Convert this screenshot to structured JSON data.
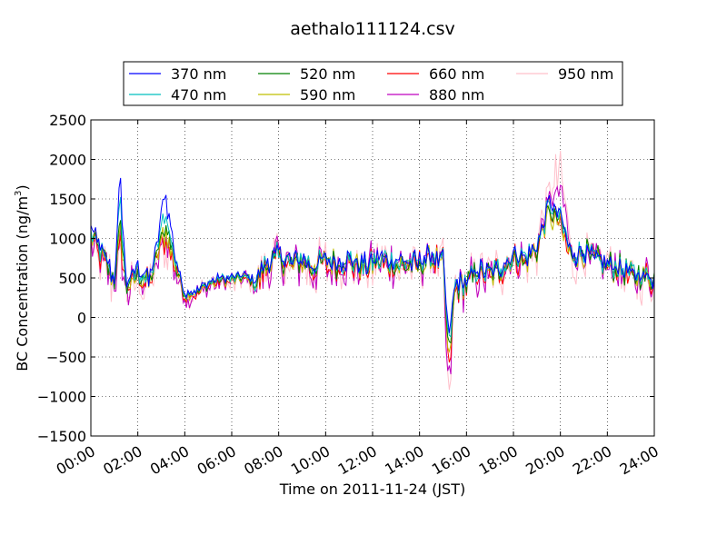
{
  "chart_data": {
    "type": "line",
    "title": "aethalo111124.csv",
    "xlabel": "Time on 2011-11-24 (JST)",
    "ylabel_main": "BC Concentration (ng/m",
    "ylabel_sup": "3",
    "ylabel_end": ")",
    "xlim": [
      "00:00",
      "24:00"
    ],
    "ylim": [
      -1500,
      2500
    ],
    "x_ticks": [
      "00:00",
      "02:00",
      "04:00",
      "06:00",
      "08:00",
      "10:00",
      "12:00",
      "14:00",
      "16:00",
      "18:00",
      "20:00",
      "22:00",
      "24:00"
    ],
    "y_ticks": [
      "−1500",
      "−1000",
      "−500",
      "0",
      "500",
      "1000",
      "1500",
      "2000",
      "2500"
    ],
    "grid": true,
    "legend_position": "top-center",
    "base_times": [
      "00:00",
      "00:30",
      "01:00",
      "01:15",
      "01:30",
      "02:00",
      "02:30",
      "03:00",
      "03:10",
      "03:30",
      "04:00",
      "04:30",
      "05:00",
      "05:30",
      "06:00",
      "06:30",
      "07:00",
      "07:30",
      "08:00",
      "08:30",
      "09:00",
      "09:30",
      "10:00",
      "10:30",
      "11:00",
      "11:30",
      "12:00",
      "12:30",
      "13:00",
      "13:30",
      "14:00",
      "14:30",
      "15:00",
      "15:15",
      "15:30",
      "16:00",
      "16:30",
      "17:00",
      "17:30",
      "18:00",
      "18:30",
      "19:00",
      "19:30",
      "20:00",
      "20:30",
      "21:00",
      "21:30",
      "22:00",
      "22:30",
      "23:00",
      "23:30",
      "24:00"
    ],
    "series": [
      {
        "name": "370 nm",
        "color": "#0000ff",
        "values": [
          1150,
          800,
          500,
          1800,
          400,
          650,
          450,
          1250,
          1600,
          900,
          300,
          350,
          450,
          500,
          500,
          550,
          450,
          700,
          800,
          700,
          750,
          650,
          750,
          700,
          750,
          650,
          700,
          750,
          700,
          700,
          700,
          800,
          700,
          -300,
          400,
          450,
          600,
          550,
          650,
          800,
          750,
          900,
          1450,
          1300,
          800,
          850,
          750,
          700,
          650,
          550,
          550,
          500
        ]
      },
      {
        "name": "470 nm",
        "color": "#00bfbf",
        "values": [
          1100,
          780,
          480,
          1500,
          390,
          600,
          440,
          1100,
          1350,
          850,
          290,
          340,
          440,
          490,
          490,
          540,
          440,
          690,
          790,
          690,
          740,
          640,
          740,
          690,
          740,
          640,
          690,
          740,
          690,
          690,
          690,
          790,
          690,
          -400,
          390,
          440,
          590,
          540,
          640,
          790,
          740,
          890,
          1400,
          1250,
          790,
          840,
          740,
          690,
          640,
          540,
          540,
          490
        ]
      },
      {
        "name": "520 nm",
        "color": "#008000",
        "values": [
          1050,
          760,
          460,
          1200,
          380,
          580,
          430,
          1000,
          1200,
          800,
          280,
          330,
          430,
          480,
          480,
          530,
          430,
          680,
          780,
          680,
          730,
          630,
          730,
          680,
          730,
          630,
          680,
          730,
          680,
          680,
          680,
          780,
          680,
          -500,
          380,
          430,
          580,
          530,
          630,
          780,
          730,
          880,
          1350,
          1200,
          780,
          830,
          730,
          680,
          630,
          530,
          530,
          480
        ]
      },
      {
        "name": "590 nm",
        "color": "#bfbf00",
        "values": [
          1020,
          740,
          450,
          1100,
          370,
          560,
          420,
          950,
          1100,
          780,
          270,
          320,
          420,
          470,
          470,
          520,
          420,
          670,
          770,
          670,
          720,
          620,
          720,
          670,
          720,
          620,
          670,
          720,
          670,
          670,
          670,
          770,
          670,
          -600,
          370,
          420,
          570,
          520,
          620,
          770,
          720,
          870,
          1300,
          1150,
          770,
          820,
          720,
          670,
          620,
          520,
          520,
          470
        ]
      },
      {
        "name": "660 nm",
        "color": "#ff0000",
        "values": [
          1000,
          720,
          440,
          1000,
          360,
          540,
          410,
          900,
          1000,
          760,
          260,
          310,
          410,
          460,
          460,
          510,
          400,
          660,
          760,
          660,
          710,
          610,
          710,
          660,
          710,
          610,
          660,
          710,
          660,
          660,
          660,
          760,
          660,
          -800,
          360,
          410,
          560,
          510,
          610,
          760,
          710,
          860,
          1400,
          1100,
          760,
          810,
          710,
          660,
          610,
          510,
          510,
          460
        ]
      },
      {
        "name": "880 nm",
        "color": "#bf00bf",
        "values": [
          980,
          700,
          430,
          950,
          350,
          520,
          400,
          860,
          950,
          740,
          250,
          300,
          400,
          450,
          450,
          500,
          390,
          650,
          750,
          650,
          700,
          600,
          700,
          650,
          700,
          600,
          650,
          700,
          650,
          650,
          650,
          750,
          650,
          -1000,
          350,
          400,
          550,
          500,
          600,
          750,
          700,
          850,
          1500,
          1600,
          750,
          800,
          700,
          650,
          600,
          500,
          500,
          450
        ]
      },
      {
        "name": "950 nm",
        "color": "#ffc0cb",
        "values": [
          960,
          680,
          420,
          900,
          340,
          500,
          390,
          820,
          900,
          720,
          240,
          290,
          390,
          440,
          440,
          490,
          380,
          640,
          740,
          640,
          690,
          590,
          690,
          640,
          690,
          590,
          640,
          690,
          640,
          640,
          640,
          740,
          640,
          -1200,
          340,
          390,
          540,
          490,
          590,
          740,
          690,
          840,
          1600,
          1800,
          740,
          790,
          690,
          640,
          590,
          490,
          490,
          440
        ]
      }
    ],
    "noise": {
      "amp": [
        70,
        75,
        80,
        85,
        95,
        140,
        160
      ]
    }
  }
}
